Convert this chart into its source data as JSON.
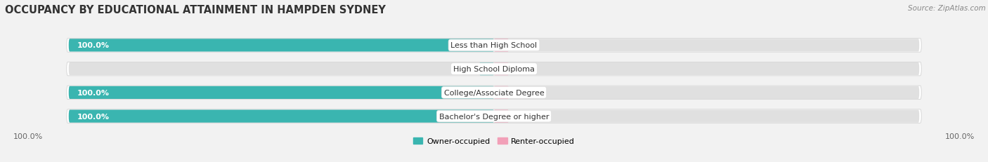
{
  "title": "OCCUPANCY BY EDUCATIONAL ATTAINMENT IN HAMPDEN SYDNEY",
  "source": "Source: ZipAtlas.com",
  "categories": [
    "Less than High School",
    "High School Diploma",
    "College/Associate Degree",
    "Bachelor's Degree or higher"
  ],
  "owner_values": [
    100.0,
    0.0,
    100.0,
    100.0
  ],
  "renter_values": [
    0.0,
    0.0,
    0.0,
    0.0
  ],
  "owner_color": "#3ab5b0",
  "renter_color": "#f2a0b8",
  "bg_color": "#f2f2f2",
  "bar_bg_color": "#e0e0e0",
  "bar_height": 0.58,
  "legend_owner": "Owner-occupied",
  "legend_renter": "Renter-occupied",
  "bottom_left_label": "100.0%",
  "bottom_right_label": "100.0%",
  "title_fontsize": 10.5,
  "label_fontsize": 8,
  "source_fontsize": 7.5,
  "tick_fontsize": 8
}
